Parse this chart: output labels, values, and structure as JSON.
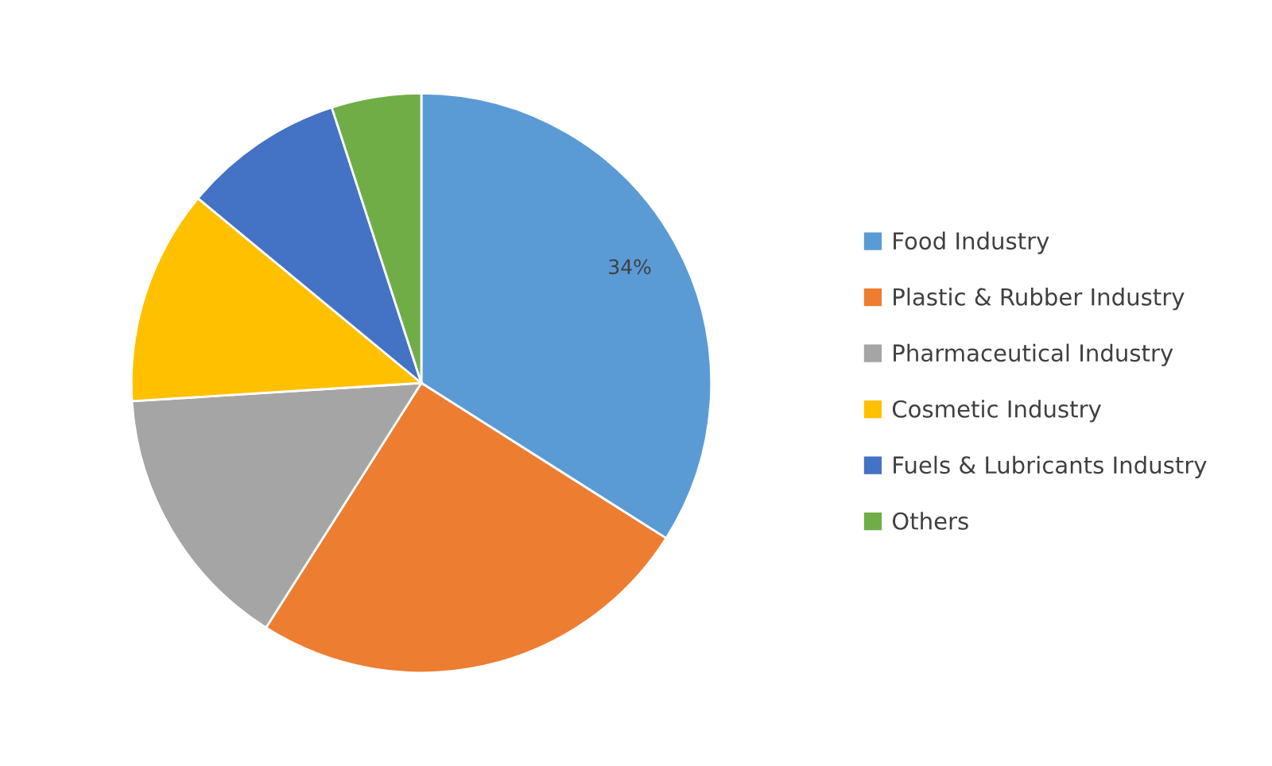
{
  "chart_data": {
    "type": "pie",
    "categories": [
      "Food Industry",
      "Plastic & Rubber Industry",
      "Pharmaceutical Industry",
      "Cosmetic Industry",
      "Fuels & Lubricants Industry",
      "Others"
    ],
    "values": [
      34,
      25,
      15,
      12,
      9,
      5
    ],
    "colors": [
      "#5b9bd5",
      "#ed7d31",
      "#a5a5a5",
      "#ffc000",
      "#4472c4",
      "#70ad47"
    ],
    "value_labels": [
      "34%",
      null,
      null,
      null,
      null,
      null
    ],
    "legend": "right"
  }
}
